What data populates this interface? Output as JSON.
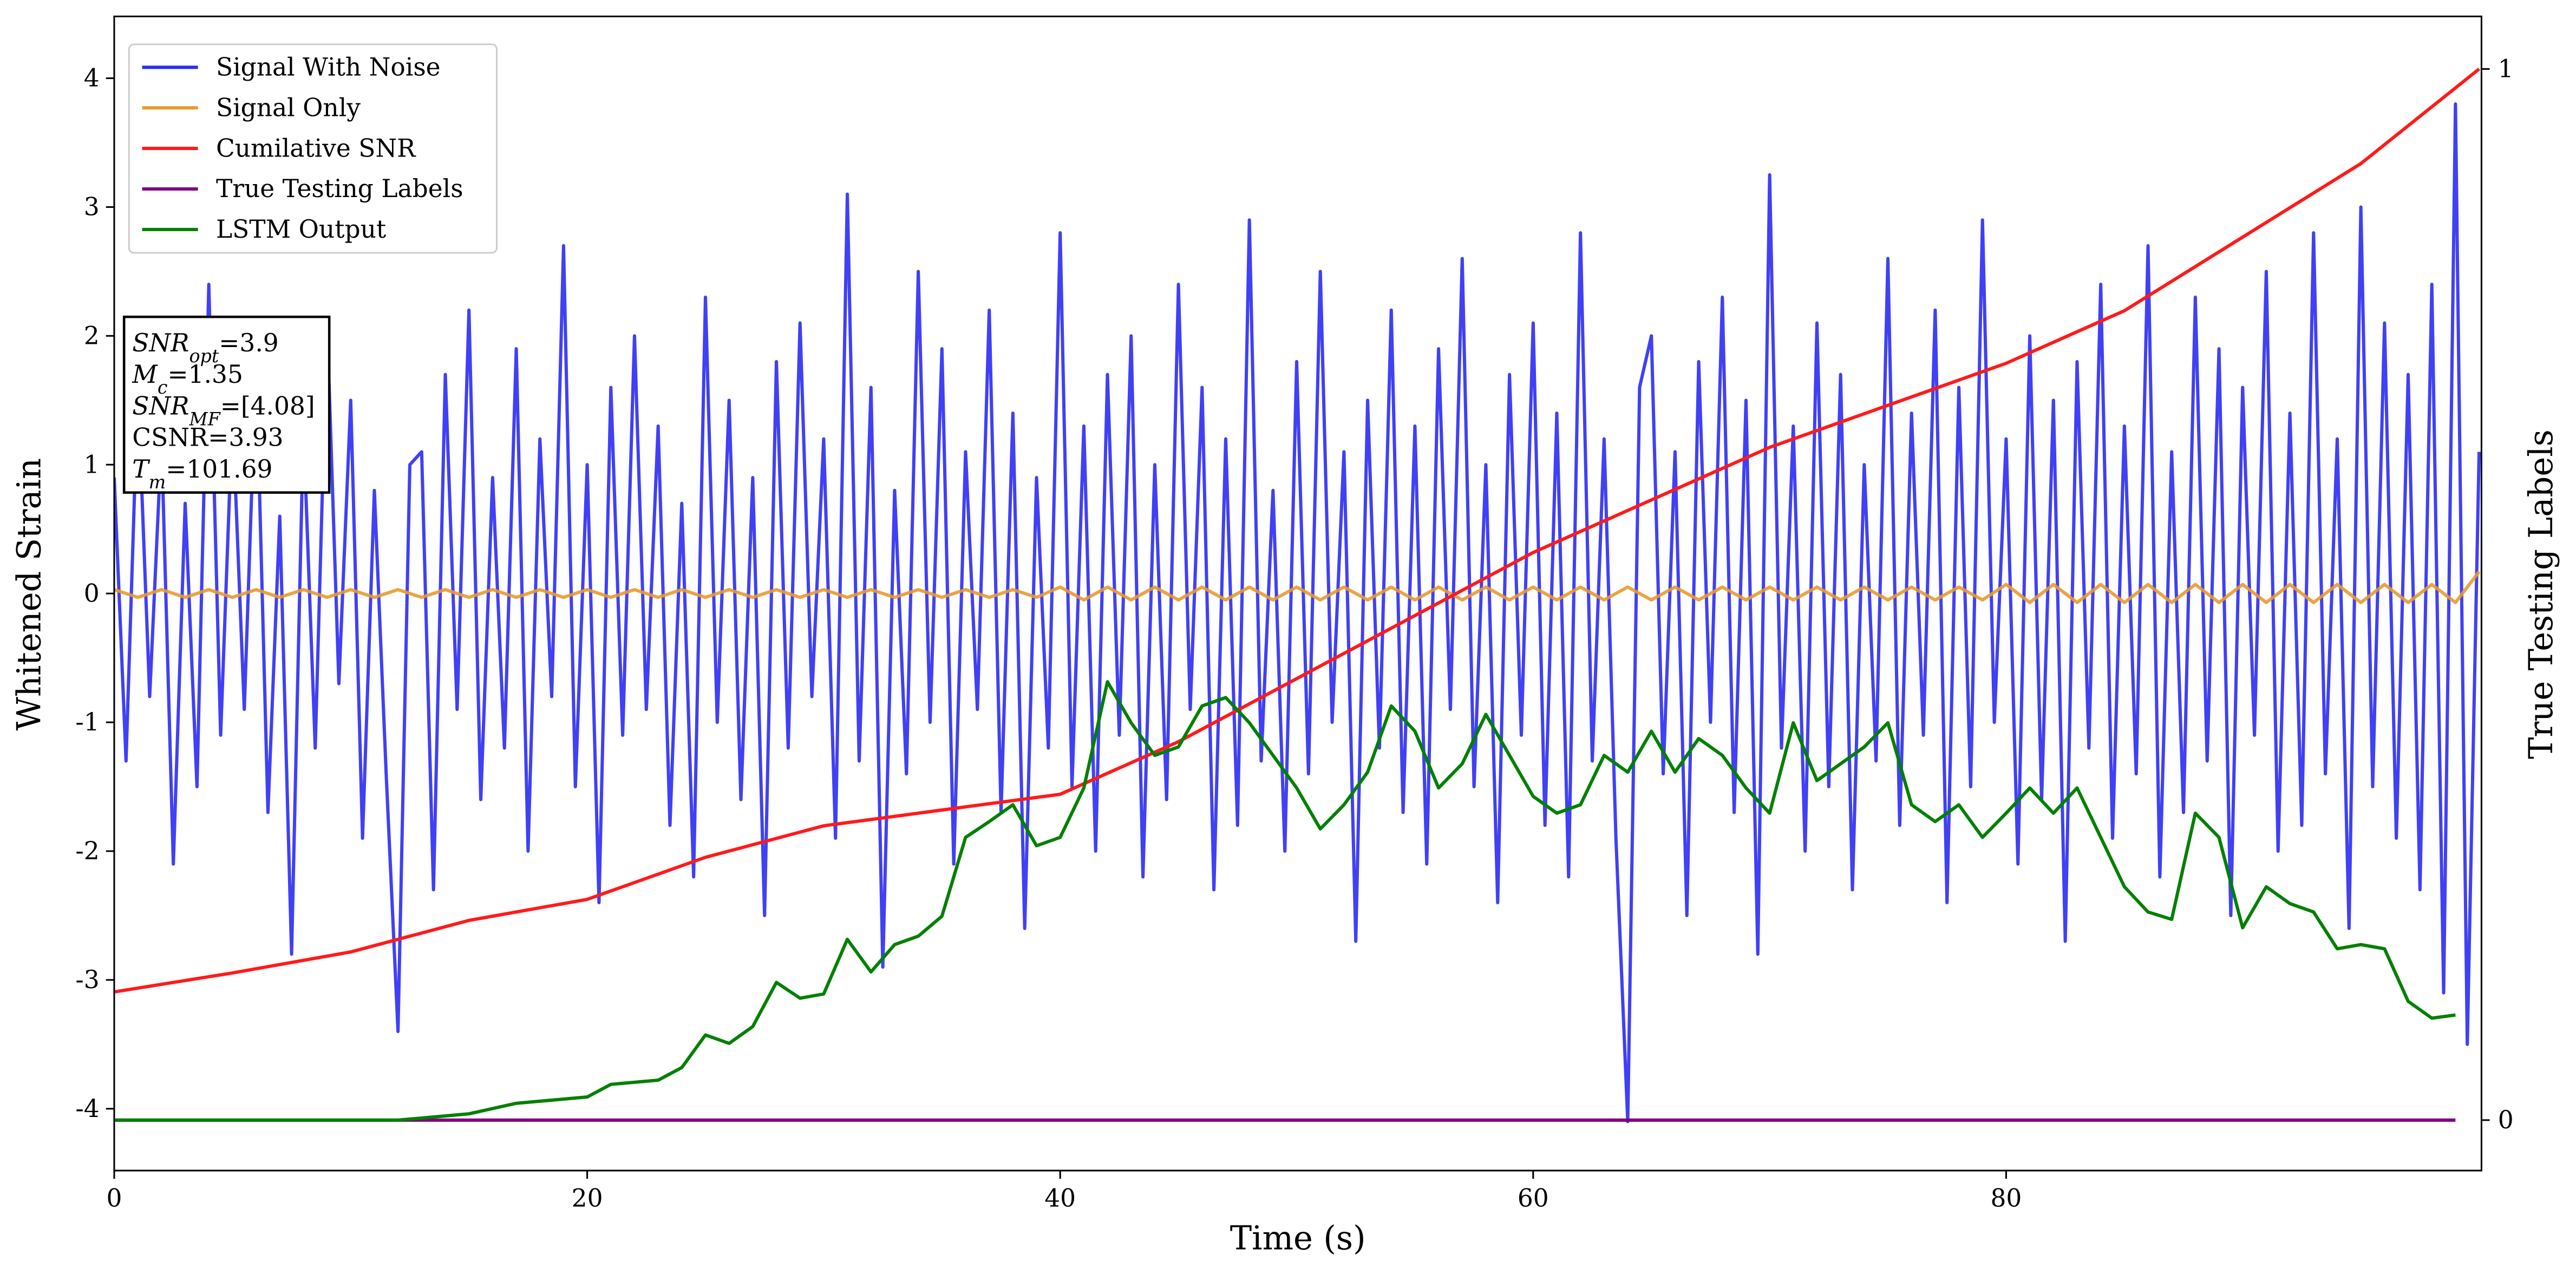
{
  "chart_data": {
    "type": "line",
    "xlabel": "Time (s)",
    "ylabel": "Whitened Strain",
    "y2label": "True Testing Labels",
    "xlim": [
      0,
      100.1
    ],
    "ylim": [
      -4.48,
      4.48
    ],
    "y2lim": [
      -0.048,
      1.05
    ],
    "xticks": [
      0,
      20,
      40,
      60,
      80
    ],
    "yticks": [
      -4,
      -3,
      -2,
      -1,
      0,
      1,
      2,
      3,
      4
    ],
    "y2ticks": [
      0,
      1
    ],
    "legend": "upper left",
    "annotation": [
      [
        "SNR",
        "opt",
        "=3.9"
      ],
      [
        "M",
        "c",
        "=1.35"
      ],
      [
        "SNR",
        "MF",
        "=[4.08]"
      ],
      [
        "CSNR=3.93"
      ],
      [
        "T",
        "m",
        "=101.69"
      ]
    ],
    "series": [
      {
        "name": "Signal With Noise",
        "color": "#2b2bf5",
        "x": [
          0,
          0.5,
          1,
          1.5,
          2,
          2.5,
          3,
          3.5,
          4,
          4.5,
          5,
          5.5,
          6,
          6.5,
          7,
          7.5,
          8,
          8.5,
          9,
          9.5,
          10,
          10.5,
          11,
          11.5,
          12,
          12.5,
          13,
          13.5,
          14,
          14.5,
          15,
          15.5,
          16,
          16.5,
          17,
          17.5,
          18,
          18.5,
          19,
          19.5,
          20,
          20.5,
          21,
          21.5,
          22,
          22.5,
          23,
          23.5,
          24,
          24.5,
          25,
          25.5,
          26,
          26.5,
          27,
          27.5,
          28,
          28.5,
          29,
          29.5,
          30,
          30.5,
          31,
          31.5,
          32,
          32.5,
          33,
          33.5,
          34,
          34.5,
          35,
          35.5,
          36,
          36.5,
          37,
          37.5,
          38,
          38.5,
          39,
          39.5,
          40,
          40.5,
          41,
          41.5,
          42,
          42.5,
          43,
          43.5,
          44,
          44.5,
          45,
          45.5,
          46,
          46.5,
          47,
          47.5,
          48,
          48.5,
          49,
          49.5,
          50,
          50.5,
          51,
          51.5,
          52,
          52.5,
          53,
          53.5,
          54,
          54.5,
          55,
          55.5,
          56,
          56.5,
          57,
          57.5,
          58,
          58.5,
          59,
          59.5,
          60,
          60.5,
          61,
          61.5,
          62,
          62.5,
          63,
          63.5,
          64,
          64.5,
          65,
          65.5,
          66,
          66.5,
          67,
          67.5,
          68,
          68.5,
          69,
          69.5,
          70,
          70.5,
          71,
          71.5,
          72,
          72.5,
          73,
          73.5,
          74,
          74.5,
          75,
          75.5,
          76,
          76.5,
          77,
          77.5,
          78,
          78.5,
          79,
          79.5,
          80,
          80.5,
          81,
          81.5,
          82,
          82.5,
          83,
          83.5,
          84,
          84.5,
          85,
          85.5,
          86,
          86.5,
          87,
          87.5,
          88,
          88.5,
          89,
          89.5,
          90,
          90.5,
          91,
          91.5,
          92,
          92.5,
          93,
          93.5,
          94,
          94.5,
          95,
          95.5,
          96,
          96.5,
          97,
          97.5,
          98,
          98.5,
          99,
          99.5,
          100
        ],
        "values": [
          0.9,
          -1.3,
          1.6,
          -0.8,
          1.2,
          -2.1,
          0.7,
          -1.5,
          2.4,
          -1.1,
          1.4,
          -0.9,
          1.8,
          -1.7,
          0.6,
          -2.8,
          1.3,
          -1.2,
          2.1,
          -0.7,
          1.5,
          -1.9,
          0.8,
          -1.4,
          -3.4,
          1.0,
          1.1,
          -2.3,
          1.7,
          -0.9,
          2.2,
          -1.6,
          0.9,
          -1.2,
          1.9,
          -2.0,
          1.2,
          -0.8,
          2.7,
          -1.5,
          1.0,
          -2.4,
          1.6,
          -1.1,
          2.0,
          -0.9,
          1.3,
          -1.8,
          0.7,
          -2.2,
          2.3,
          -1.0,
          1.5,
          -1.6,
          0.9,
          -2.5,
          1.8,
          -1.2,
          2.1,
          -0.8,
          1.2,
          -1.9,
          3.1,
          -1.3,
          1.6,
          -2.9,
          0.8,
          -1.4,
          2.5,
          -1.0,
          1.9,
          -2.1,
          1.1,
          -0.9,
          2.2,
          -1.7,
          1.4,
          -2.6,
          0.9,
          -1.2,
          2.8,
          -1.5,
          1.3,
          -2.0,
          1.7,
          -1.1,
          2.0,
          -2.2,
          1.0,
          -1.6,
          2.4,
          -0.9,
          1.6,
          -2.3,
          1.2,
          -1.8,
          2.9,
          -1.3,
          0.8,
          -2.0,
          1.8,
          -1.4,
          2.5,
          -1.0,
          1.1,
          -2.7,
          1.5,
          -1.2,
          2.2,
          -1.7,
          1.3,
          -2.1,
          1.9,
          -0.9,
          2.6,
          -1.5,
          1.0,
          -2.4,
          1.7,
          -1.1,
          2.1,
          -1.8,
          1.4,
          -2.2,
          2.8,
          -1.3,
          1.2,
          -1.9,
          -4.1,
          1.6,
          2.0,
          -1.4,
          1.1,
          -2.5,
          1.8,
          -1.0,
          2.3,
          -1.7,
          1.5,
          -2.8,
          3.25,
          -1.2,
          1.3,
          -2.0,
          2.1,
          -1.5,
          1.7,
          -2.3,
          1.0,
          -1.3,
          2.6,
          -1.8,
          1.4,
          -1.1,
          2.2,
          -2.4,
          1.6,
          -1.5,
          2.9,
          -1.0,
          1.2,
          -2.1,
          2.0,
          -1.6,
          1.5,
          -2.7,
          1.8,
          -1.2,
          2.4,
          -1.9,
          1.3,
          -1.4,
          2.7,
          -2.2,
          1.1,
          -1.7,
          2.3,
          -1.3,
          1.9,
          -2.5,
          1.6,
          -1.1,
          2.5,
          -2.0,
          1.4,
          -1.8,
          2.8,
          -1.4,
          1.2,
          -2.6,
          3.0,
          -1.5,
          2.1,
          -1.9,
          1.7,
          -2.3,
          2.4,
          -3.1,
          3.8,
          -3.5,
          1.1
        ]
      },
      {
        "name": "Signal Only",
        "color": "#e89a30",
        "x": [
          0,
          1,
          2,
          3,
          4,
          5,
          6,
          7,
          8,
          9,
          10,
          11,
          12,
          13,
          14,
          15,
          16,
          17,
          18,
          19,
          20,
          21,
          22,
          23,
          24,
          25,
          26,
          27,
          28,
          29,
          30,
          31,
          32,
          33,
          34,
          35,
          36,
          37,
          38,
          39,
          40,
          41,
          42,
          43,
          44,
          45,
          46,
          47,
          48,
          49,
          50,
          51,
          52,
          53,
          54,
          55,
          56,
          57,
          58,
          59,
          60,
          61,
          62,
          63,
          64,
          65,
          66,
          67,
          68,
          69,
          70,
          71,
          72,
          73,
          74,
          75,
          76,
          77,
          78,
          79,
          80,
          81,
          82,
          83,
          84,
          85,
          86,
          87,
          88,
          89,
          90,
          91,
          92,
          93,
          94,
          95,
          96,
          97,
          98,
          99,
          100
        ],
        "values": [
          0.03,
          -0.03,
          0.03,
          -0.03,
          0.03,
          -0.03,
          0.03,
          -0.03,
          0.03,
          -0.03,
          0.03,
          -0.03,
          0.03,
          -0.03,
          0.03,
          -0.03,
          0.03,
          -0.03,
          0.03,
          -0.03,
          0.03,
          -0.03,
          0.03,
          -0.03,
          0.03,
          -0.03,
          0.03,
          -0.03,
          0.03,
          -0.03,
          0.03,
          -0.03,
          0.03,
          -0.03,
          0.03,
          -0.03,
          0.03,
          -0.03,
          0.03,
          -0.03,
          0.05,
          -0.05,
          0.05,
          -0.05,
          0.05,
          -0.05,
          0.05,
          -0.05,
          0.05,
          -0.05,
          0.05,
          -0.05,
          0.05,
          -0.05,
          0.05,
          -0.05,
          0.05,
          -0.05,
          0.05,
          -0.05,
          0.05,
          -0.05,
          0.05,
          -0.05,
          0.05,
          -0.05,
          0.05,
          -0.05,
          0.05,
          -0.05,
          0.05,
          -0.05,
          0.05,
          -0.05,
          0.05,
          -0.05,
          0.05,
          -0.05,
          0.05,
          -0.05,
          0.07,
          -0.07,
          0.07,
          -0.07,
          0.07,
          -0.07,
          0.07,
          -0.07,
          0.07,
          -0.07,
          0.07,
          -0.07,
          0.07,
          -0.07,
          0.07,
          -0.07,
          0.07,
          -0.07,
          0.07,
          -0.07,
          0.17
        ]
      },
      {
        "name": "Cumilative SNR",
        "color": "#ff1a1a",
        "axis": "y2",
        "x": [
          0,
          5,
          10,
          15,
          20,
          25,
          30,
          35,
          40,
          45,
          50,
          55,
          60,
          65,
          70,
          75,
          80,
          85,
          90,
          95,
          100
        ],
        "values": [
          0.122,
          0.14,
          0.16,
          0.19,
          0.21,
          0.25,
          0.28,
          0.295,
          0.31,
          0.36,
          0.42,
          0.48,
          0.54,
          0.59,
          0.64,
          0.68,
          0.72,
          0.77,
          0.84,
          0.91,
          1.0
        ]
      },
      {
        "name": "True Testing Labels",
        "color": "#800080",
        "axis": "y2",
        "x": [
          0,
          99
        ],
        "values": [
          0,
          0
        ]
      },
      {
        "name": "LSTM Output",
        "color": "#008000",
        "axis": "y2",
        "x": [
          0,
          12,
          15,
          17,
          20,
          21,
          23,
          24,
          25,
          26,
          27,
          28,
          29,
          30,
          31,
          32,
          33,
          34,
          35,
          36,
          37,
          38,
          39,
          40,
          41,
          42,
          43,
          44,
          45,
          46,
          47,
          48,
          49,
          50,
          51,
          52,
          53,
          54,
          55,
          56,
          57,
          58,
          59,
          60,
          61,
          62,
          63,
          64,
          65,
          66,
          67,
          68,
          69,
          70,
          71,
          72,
          73,
          74,
          75,
          76,
          77,
          78,
          79,
          80,
          81,
          82,
          83,
          84,
          85,
          86,
          87,
          88,
          89,
          90,
          91,
          92,
          93,
          94,
          95,
          96,
          97,
          98,
          99
        ],
        "values": [
          0,
          0,
          0.006,
          0.016,
          0.022,
          0.034,
          0.038,
          0.05,
          0.081,
          0.073,
          0.089,
          0.131,
          0.116,
          0.12,
          0.172,
          0.141,
          0.167,
          0.175,
          0.194,
          0.269,
          0.284,
          0.3,
          0.261,
          0.269,
          0.316,
          0.417,
          0.378,
          0.347,
          0.355,
          0.394,
          0.402,
          0.378,
          0.347,
          0.316,
          0.277,
          0.3,
          0.331,
          0.394,
          0.37,
          0.316,
          0.339,
          0.386,
          0.347,
          0.308,
          0.292,
          0.3,
          0.347,
          0.331,
          0.37,
          0.331,
          0.363,
          0.347,
          0.316,
          0.292,
          0.378,
          0.323,
          0.339,
          0.355,
          0.378,
          0.3,
          0.284,
          0.3,
          0.269,
          0.292,
          0.316,
          0.292,
          0.316,
          0.269,
          0.222,
          0.198,
          0.191,
          0.292,
          0.269,
          0.183,
          0.222,
          0.206,
          0.198,
          0.163,
          0.167,
          0.163,
          0.113,
          0.097,
          0.1
        ]
      }
    ]
  }
}
